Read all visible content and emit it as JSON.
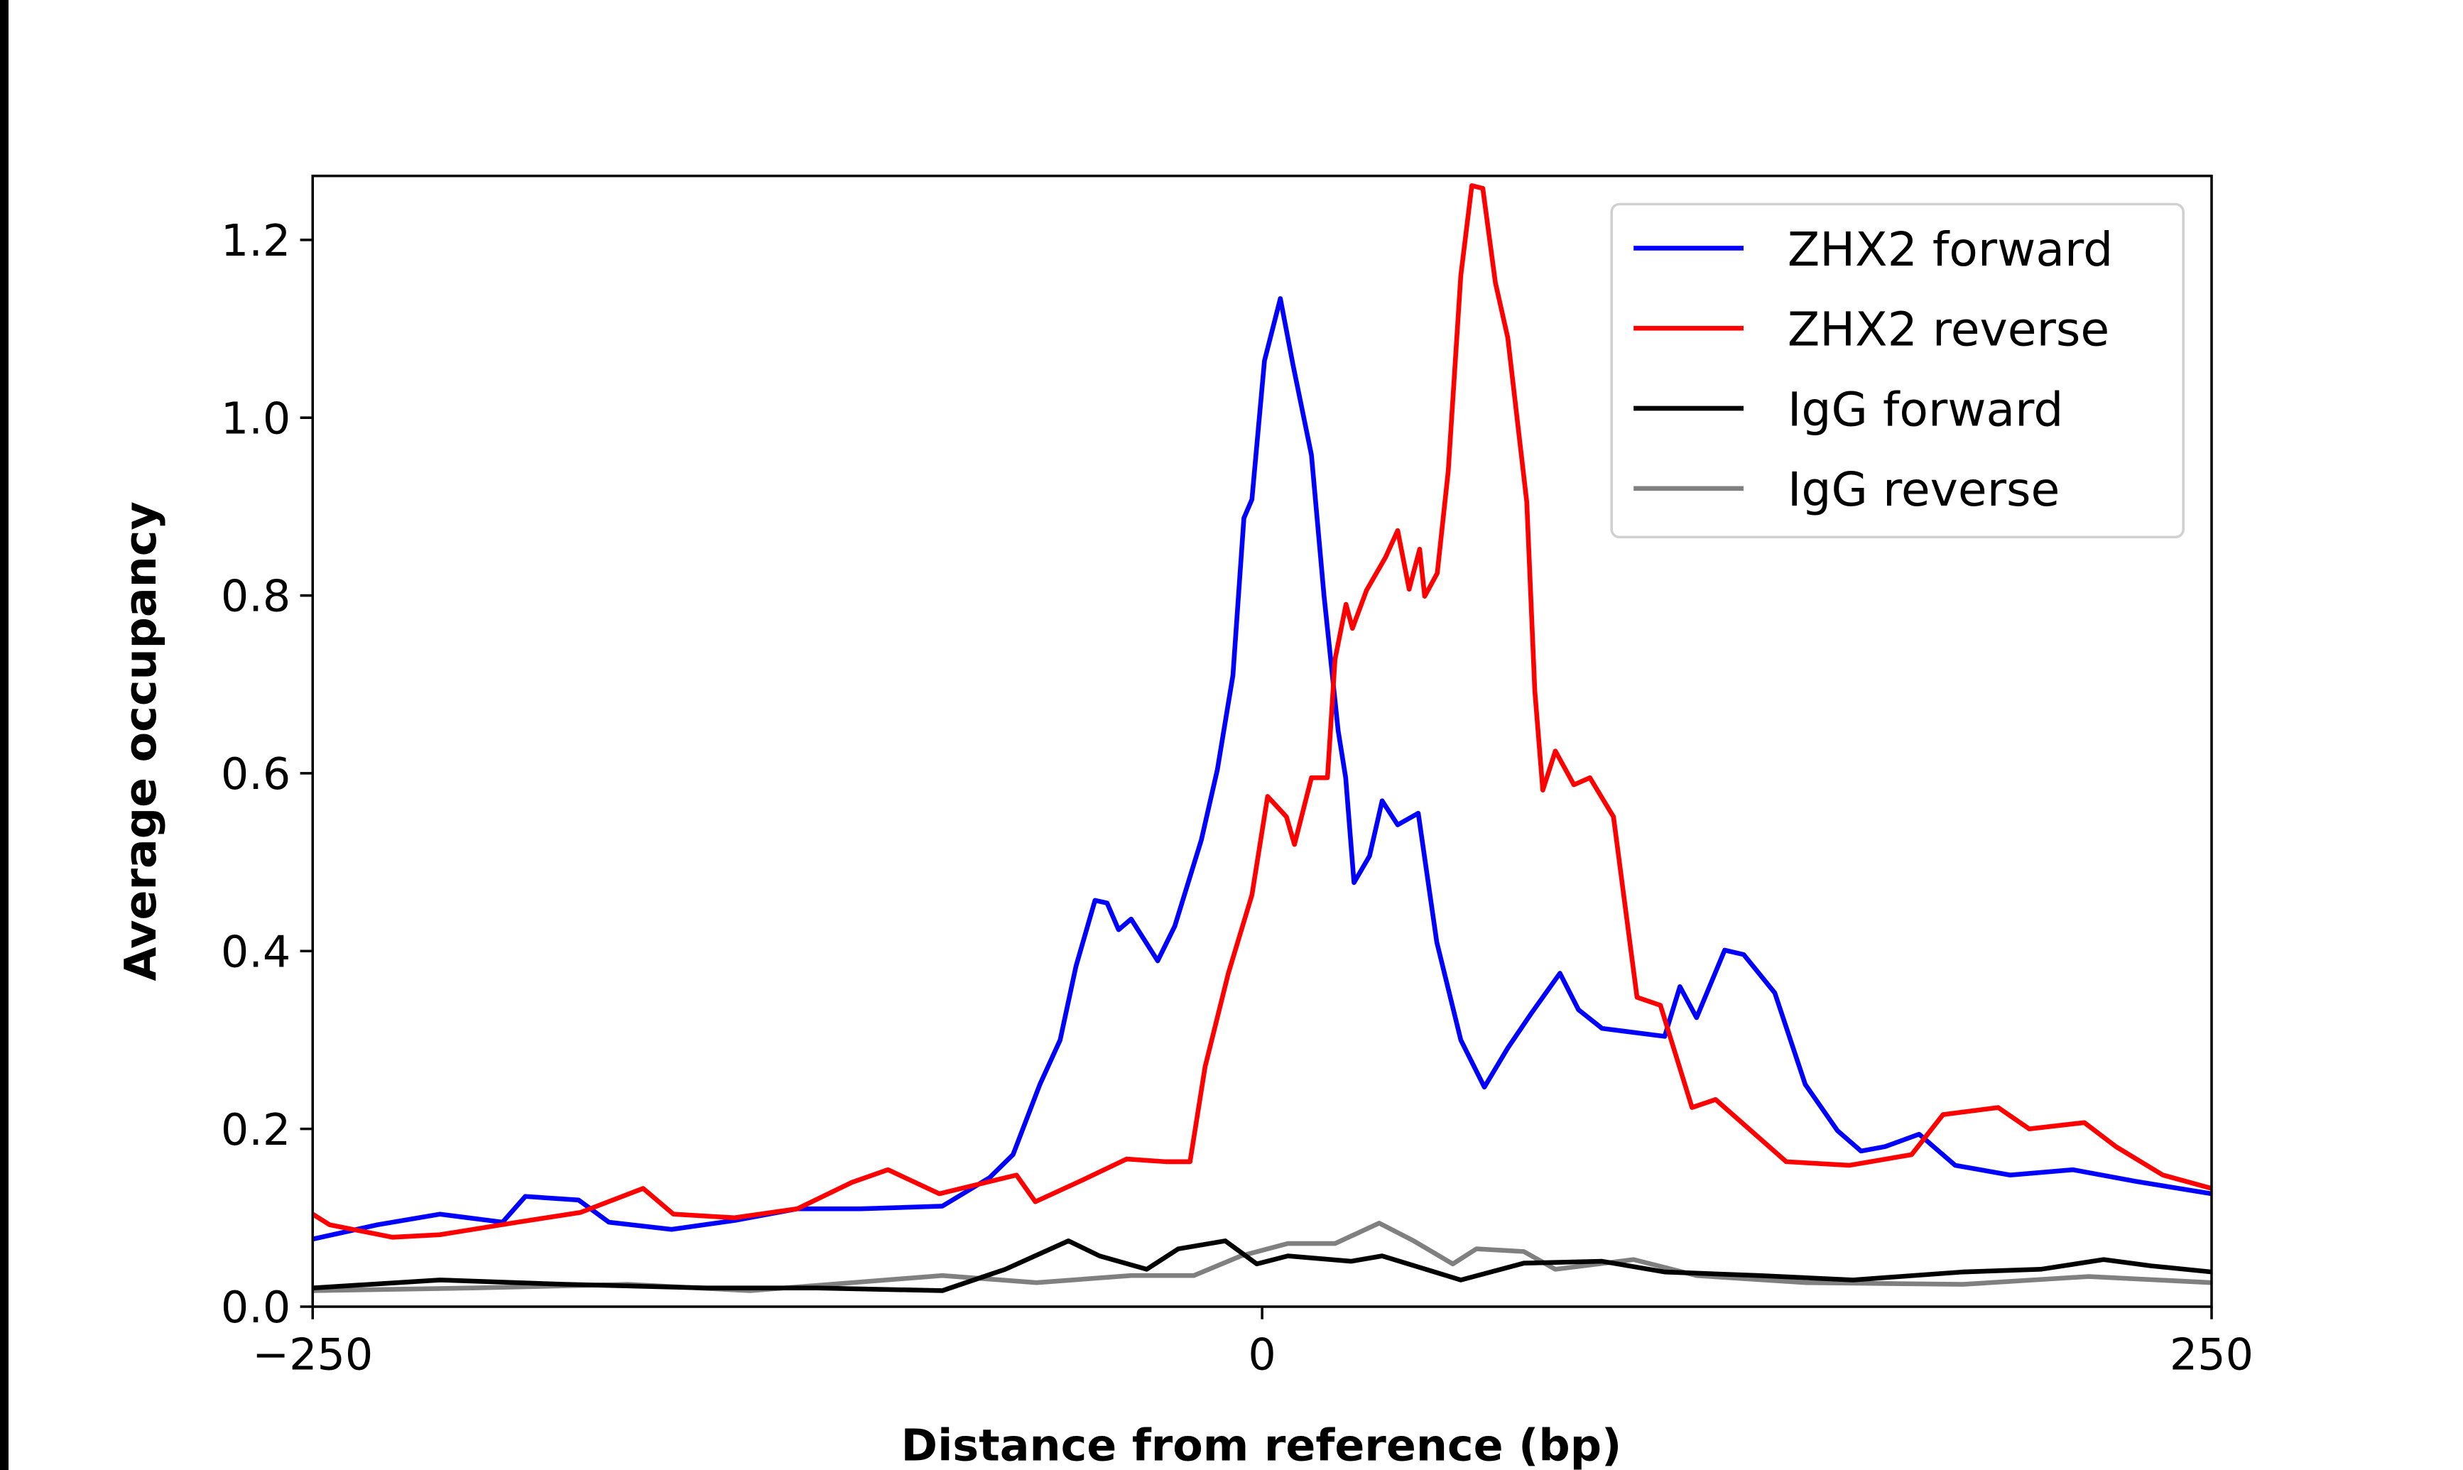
{
  "chart_data": {
    "type": "line",
    "title": "",
    "xlabel": "Distance from reference (bp)",
    "ylabel": "Average occupancy",
    "xlim": [
      -250,
      250
    ],
    "ylim": [
      0,
      1.272
    ],
    "xticks": [
      -250,
      0,
      250
    ],
    "xtick_labels": [
      "−250",
      "0",
      "250"
    ],
    "yticks": [
      0,
      0.2,
      0.4,
      0.6,
      0.8,
      1.0,
      1.2
    ],
    "ytick_labels": [
      "0.0",
      "0.2",
      "0.4",
      "0.6",
      "0.8",
      "1.0",
      "1.2"
    ],
    "grid": false,
    "legend_placement": "top-right",
    "series": [
      {
        "name": "ZHX2 forward",
        "color": "#0000ff",
        "x": [
          -250,
          -233,
          -216.5,
          -200,
          -194,
          -180,
          -172,
          -155.5,
          -138.9,
          -122.4,
          -105.8,
          -84.2,
          -71.8,
          -65.6,
          -58.5,
          -53.2,
          -49,
          -44,
          -40.8,
          -37.8,
          -34.5,
          -27.5,
          -23,
          -16,
          -11.8,
          -7.7,
          -4.8,
          -2.7,
          0.6,
          4.8,
          8.1,
          13,
          16.3,
          20,
          22,
          24.2,
          28.3,
          31.6,
          35.7,
          41.1,
          46,
          52.3,
          58.5,
          64.7,
          70.9,
          78.4,
          83.3,
          89.5,
          106,
          110,
          114.4,
          121.8,
          126.8,
          135,
          143,
          151.5,
          157.7,
          164,
          173,
          182.5,
          197,
          213.5,
          230,
          250
        ],
        "y": [
          0.076,
          0.092,
          0.104,
          0.095,
          0.124,
          0.12,
          0.095,
          0.087,
          0.097,
          0.11,
          0.11,
          0.113,
          0.145,
          0.171,
          0.25,
          0.3,
          0.383,
          0.457,
          0.454,
          0.424,
          0.436,
          0.389,
          0.428,
          0.525,
          0.604,
          0.71,
          0.887,
          0.908,
          1.064,
          1.134,
          1.06,
          0.958,
          0.8,
          0.648,
          0.595,
          0.477,
          0.507,
          0.569,
          0.542,
          0.555,
          0.41,
          0.3,
          0.247,
          0.291,
          0.33,
          0.375,
          0.334,
          0.313,
          0.304,
          0.36,
          0.325,
          0.401,
          0.396,
          0.353,
          0.25,
          0.198,
          0.175,
          0.18,
          0.194,
          0.159,
          0.148,
          0.154,
          0.141,
          0.127
        ]
      },
      {
        "name": "ZHX2 reverse",
        "color": "#ff0000",
        "x": [
          -250,
          -245.5,
          -229,
          -216.5,
          -196,
          -179.5,
          -163,
          -155,
          -138.9,
          -122.4,
          -108,
          -98.5,
          -85,
          -64.7,
          -59.7,
          -48,
          -35.7,
          -25.4,
          -19,
          -15,
          -8.9,
          -2.7,
          1.45,
          6.4,
          8.5,
          13,
          17.2,
          19.2,
          22.1,
          23.8,
          27.5,
          32.5,
          35.7,
          38.7,
          41.5,
          42.8,
          46.1,
          49,
          52.3,
          55.2,
          58.1,
          61.4,
          64.7,
          69.7,
          71.8,
          73.9,
          77.2,
          82.1,
          86.3,
          92.5,
          98.7,
          104.9,
          113.2,
          119.4,
          138,
          154.6,
          171,
          179.3,
          193.8,
          202,
          216.5,
          224.8,
          237.2,
          250
        ],
        "y": [
          0.104,
          0.092,
          0.078,
          0.081,
          0.095,
          0.106,
          0.133,
          0.104,
          0.1,
          0.11,
          0.14,
          0.154,
          0.127,
          0.148,
          0.118,
          0.141,
          0.166,
          0.163,
          0.163,
          0.27,
          0.375,
          0.463,
          0.574,
          0.551,
          0.52,
          0.595,
          0.595,
          0.728,
          0.79,
          0.763,
          0.806,
          0.843,
          0.873,
          0.807,
          0.852,
          0.799,
          0.825,
          0.94,
          1.16,
          1.261,
          1.258,
          1.152,
          1.09,
          0.905,
          0.693,
          0.581,
          0.625,
          0.587,
          0.595,
          0.551,
          0.348,
          0.339,
          0.224,
          0.233,
          0.163,
          0.159,
          0.171,
          0.216,
          0.224,
          0.2,
          0.207,
          0.18,
          0.148,
          0.133
        ]
      },
      {
        "name": "IgG forward",
        "color": "#000000",
        "x": [
          -250,
          -216.5,
          -183.4,
          -146.2,
          -117.3,
          -84.2,
          -67.6,
          -51,
          -42.8,
          -30.4,
          -22.1,
          -9.7,
          -1.4,
          6.8,
          23.4,
          31.6,
          52.3,
          68.9,
          89.5,
          106,
          130.8,
          155.6,
          184.5,
          205,
          221.6,
          234,
          250
        ],
        "y": [
          0.021,
          0.03,
          0.025,
          0.021,
          0.021,
          0.018,
          0.042,
          0.074,
          0.057,
          0.042,
          0.065,
          0.074,
          0.048,
          0.057,
          0.051,
          0.057,
          0.03,
          0.049,
          0.051,
          0.039,
          0.035,
          0.03,
          0.039,
          0.042,
          0.053,
          0.046,
          0.039
        ]
      },
      {
        "name": "IgG reverse",
        "color": "#808080",
        "x": [
          -250,
          -208,
          -167,
          -134.8,
          -84.2,
          -59.4,
          -34.5,
          -18,
          -5.6,
          6.8,
          19.2,
          30.8,
          39.9,
          50.2,
          56.4,
          68.9,
          77.2,
          97.8,
          114.4,
          143.3,
          184.5,
          217.6,
          250
        ],
        "y": [
          0.018,
          0.021,
          0.025,
          0.018,
          0.035,
          0.027,
          0.035,
          0.035,
          0.057,
          0.071,
          0.071,
          0.094,
          0.074,
          0.048,
          0.065,
          0.062,
          0.042,
          0.053,
          0.035,
          0.027,
          0.025,
          0.034,
          0.027
        ]
      }
    ]
  }
}
